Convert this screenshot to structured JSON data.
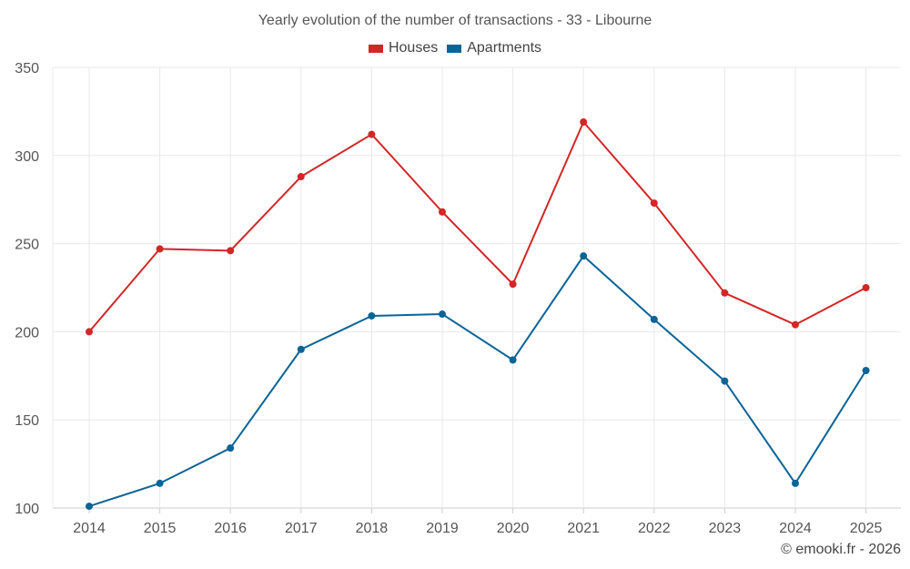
{
  "colors": {
    "houses": "#d32626",
    "apartments": "#0a6496",
    "grid": "#e8e8e8",
    "axis": "#cccccc"
  },
  "chart_data": {
    "type": "line",
    "title": "Yearly evolution of the number of transactions - 33 - Libourne",
    "xlabel": "",
    "ylabel": "",
    "categories": [
      "2014",
      "2015",
      "2016",
      "2017",
      "2018",
      "2019",
      "2020",
      "2021",
      "2022",
      "2023",
      "2024",
      "2025"
    ],
    "ylim": [
      100,
      350
    ],
    "yticks": [
      100,
      150,
      200,
      250,
      300,
      350
    ],
    "grid": true,
    "legend_position": "top-center",
    "series": [
      {
        "name": "Houses",
        "color": "#d32626",
        "values": [
          200,
          247,
          246,
          288,
          312,
          268,
          227,
          319,
          273,
          222,
          204,
          225
        ]
      },
      {
        "name": "Apartments",
        "color": "#0a6496",
        "values": [
          101,
          114,
          134,
          190,
          209,
          210,
          184,
          243,
          207,
          172,
          114,
          178
        ]
      }
    ]
  },
  "credit": "© emooki.fr - 2026"
}
